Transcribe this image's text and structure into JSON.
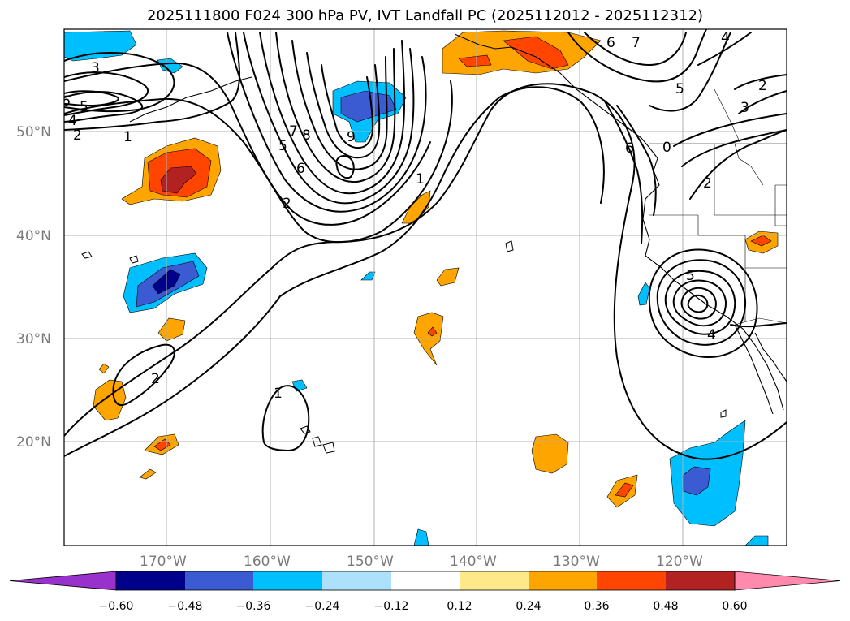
{
  "title": "2025111800 F024 300 hPa PV, IVT Landfall PC (2025112012 - 2025112312)",
  "map": {
    "lat_labels": [
      "50°N",
      "40°N",
      "30°N",
      "20°N"
    ],
    "lon_labels": [
      "170°W",
      "160°W",
      "150°W",
      "140°W",
      "130°W",
      "120°W"
    ]
  },
  "contour_labels": [
    "3",
    "6",
    "5",
    "4",
    "2",
    "1",
    "5",
    "8",
    "7",
    "6",
    "9",
    "1",
    "2",
    "6",
    "7",
    "4",
    "2",
    "3",
    "5",
    "6",
    "2",
    "0",
    "5",
    "4",
    "2",
    "1"
  ],
  "colorbar": {
    "tick_labels": [
      "−0.60",
      "−0.48",
      "−0.36",
      "−0.24",
      "−0.12",
      "0.12",
      "0.24",
      "0.36",
      "0.48",
      "0.60"
    ],
    "colors": [
      "#9932CC",
      "#00008B",
      "#3A5BD2",
      "#00BFFF",
      "#ADE0FA",
      "#FFFFFF",
      "#FFE88A",
      "#FFA500",
      "#FF4500",
      "#B22222",
      "#FF8AAE"
    ]
  }
}
